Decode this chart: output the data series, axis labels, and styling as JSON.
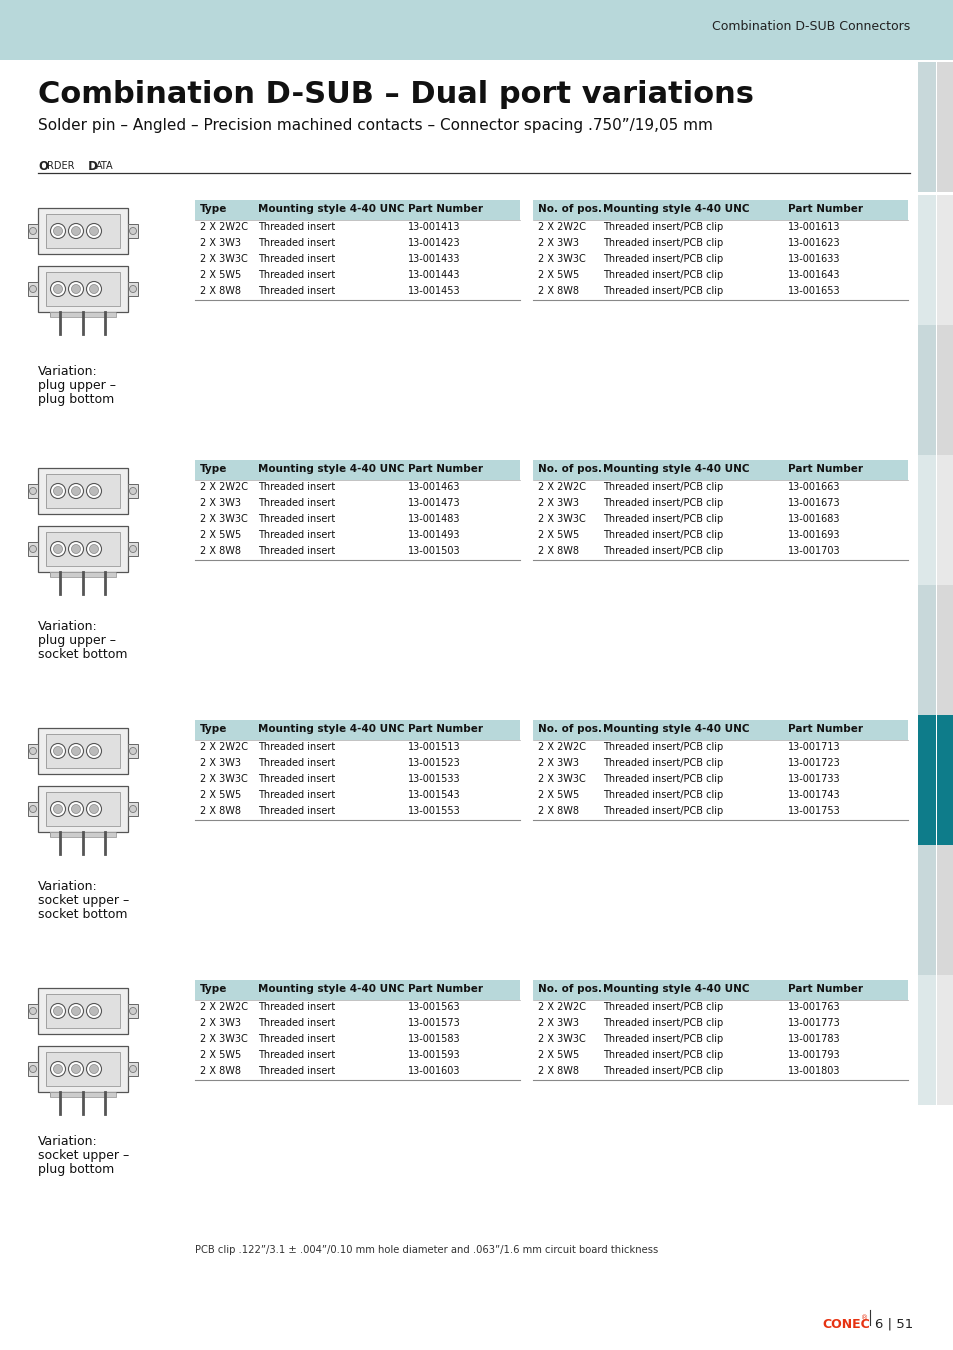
{
  "header_bg": "#b8d8da",
  "header_text": "Combination D-SUB Connectors",
  "page_bg": "#ffffff",
  "title": "Combination D-SUB – Dual port variations",
  "subtitle": "Solder pin – Angled – Precision machined contacts – Connector spacing .750”/19,05 mm",
  "table_header_bg": "#b8d8da",
  "sidebar_blue": "#0e7c8a",
  "sidebar_light": "#c8d8da",
  "sidebar_lighter": "#dde8e9",
  "text_dark": "#1a1a1a",
  "line_color": "#888888",
  "conec_color": "#e63312",
  "variations": [
    {
      "label": [
        "Variation:",
        "plug upper –",
        "plug bottom"
      ],
      "left_table": {
        "headers": [
          "Type",
          "Mounting style 4-40 UNC",
          "Part Number"
        ],
        "rows": [
          [
            "2 X 2W2C",
            "Threaded insert",
            "13-001413"
          ],
          [
            "2 X 3W3",
            "Threaded insert",
            "13-001423"
          ],
          [
            "2 X 3W3C",
            "Threaded insert",
            "13-001433"
          ],
          [
            "2 X 5W5",
            "Threaded insert",
            "13-001443"
          ],
          [
            "2 X 8W8",
            "Threaded insert",
            "13-001453"
          ]
        ]
      },
      "right_table": {
        "headers": [
          "No. of pos.",
          "Mounting style 4-40 UNC",
          "Part Number"
        ],
        "rows": [
          [
            "2 X 2W2C",
            "Threaded insert/PCB clip",
            "13-001613"
          ],
          [
            "2 X 3W3",
            "Threaded insert/PCB clip",
            "13-001623"
          ],
          [
            "2 X 3W3C",
            "Threaded insert/PCB clip",
            "13-001633"
          ],
          [
            "2 X 5W5",
            "Threaded insert/PCB clip",
            "13-001643"
          ],
          [
            "2 X 8W8",
            "Threaded insert/PCB clip",
            "13-001653"
          ]
        ]
      }
    },
    {
      "label": [
        "Variation:",
        "plug upper –",
        "socket bottom"
      ],
      "left_table": {
        "headers": [
          "Type",
          "Mounting style 4-40 UNC",
          "Part Number"
        ],
        "rows": [
          [
            "2 X 2W2C",
            "Threaded insert",
            "13-001463"
          ],
          [
            "2 X 3W3",
            "Threaded insert",
            "13-001473"
          ],
          [
            "2 X 3W3C",
            "Threaded insert",
            "13-001483"
          ],
          [
            "2 X 5W5",
            "Threaded insert",
            "13-001493"
          ],
          [
            "2 X 8W8",
            "Threaded insert",
            "13-001503"
          ]
        ]
      },
      "right_table": {
        "headers": [
          "No. of pos.",
          "Mounting style 4-40 UNC",
          "Part Number"
        ],
        "rows": [
          [
            "2 X 2W2C",
            "Threaded insert/PCB clip",
            "13-001663"
          ],
          [
            "2 X 3W3",
            "Threaded insert/PCB clip",
            "13-001673"
          ],
          [
            "2 X 3W3C",
            "Threaded insert/PCB clip",
            "13-001683"
          ],
          [
            "2 X 5W5",
            "Threaded insert/PCB clip",
            "13-001693"
          ],
          [
            "2 X 8W8",
            "Threaded insert/PCB clip",
            "13-001703"
          ]
        ]
      }
    },
    {
      "label": [
        "Variation:",
        "socket upper –",
        "socket bottom"
      ],
      "left_table": {
        "headers": [
          "Type",
          "Mounting style 4-40 UNC",
          "Part Number"
        ],
        "rows": [
          [
            "2 X 2W2C",
            "Threaded insert",
            "13-001513"
          ],
          [
            "2 X 3W3",
            "Threaded insert",
            "13-001523"
          ],
          [
            "2 X 3W3C",
            "Threaded insert",
            "13-001533"
          ],
          [
            "2 X 5W5",
            "Threaded insert",
            "13-001543"
          ],
          [
            "2 X 8W8",
            "Threaded insert",
            "13-001553"
          ]
        ]
      },
      "right_table": {
        "headers": [
          "No. of pos.",
          "Mounting style 4-40 UNC",
          "Part Number"
        ],
        "rows": [
          [
            "2 X 2W2C",
            "Threaded insert/PCB clip",
            "13-001713"
          ],
          [
            "2 X 3W3",
            "Threaded insert/PCB clip",
            "13-001723"
          ],
          [
            "2 X 3W3C",
            "Threaded insert/PCB clip",
            "13-001733"
          ],
          [
            "2 X 5W5",
            "Threaded insert/PCB clip",
            "13-001743"
          ],
          [
            "2 X 8W8",
            "Threaded insert/PCB clip",
            "13-001753"
          ]
        ]
      }
    },
    {
      "label": [
        "Variation:",
        "socket upper –",
        "plug bottom"
      ],
      "left_table": {
        "headers": [
          "Type",
          "Mounting style 4-40 UNC",
          "Part Number"
        ],
        "rows": [
          [
            "2 X 2W2C",
            "Threaded insert",
            "13-001563"
          ],
          [
            "2 X 3W3",
            "Threaded insert",
            "13-001573"
          ],
          [
            "2 X 3W3C",
            "Threaded insert",
            "13-001583"
          ],
          [
            "2 X 5W5",
            "Threaded insert",
            "13-001593"
          ],
          [
            "2 X 8W8",
            "Threaded insert",
            "13-001603"
          ]
        ]
      },
      "right_table": {
        "headers": [
          "No. of pos.",
          "Mounting style 4-40 UNC",
          "Part Number"
        ],
        "rows": [
          [
            "2 X 2W2C",
            "Threaded insert/PCB clip",
            "13-001763"
          ],
          [
            "2 X 3W3",
            "Threaded insert/PCB clip",
            "13-001773"
          ],
          [
            "2 X 3W3C",
            "Threaded insert/PCB clip",
            "13-001783"
          ],
          [
            "2 X 5W5",
            "Threaded insert/PCB clip",
            "13-001793"
          ],
          [
            "2 X 8W8",
            "Threaded insert/PCB clip",
            "13-001803"
          ]
        ]
      }
    }
  ],
  "footer_note": "PCB clip .122”/3.1 ± .004”/0.10 mm hole diameter and .063”/1.6 mm circuit board thickness",
  "page_number": "6 | 51"
}
